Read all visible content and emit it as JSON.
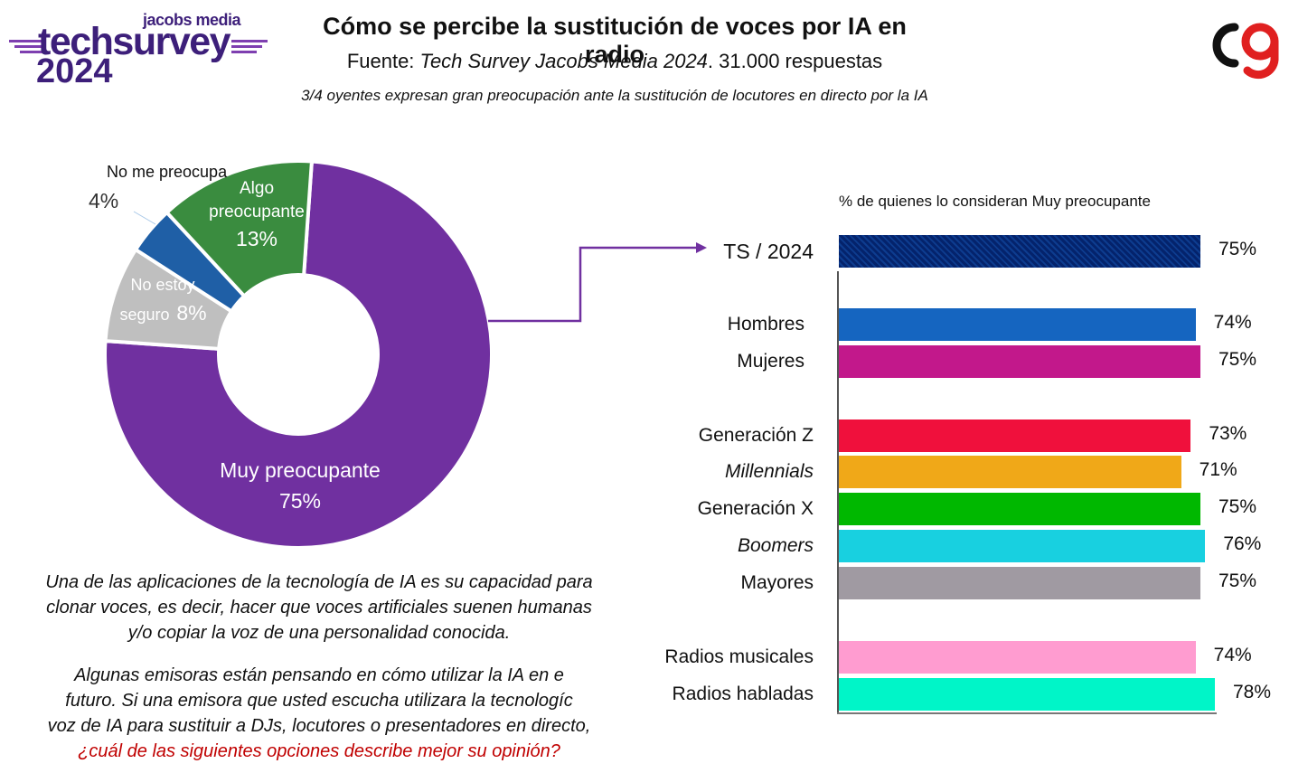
{
  "logo": {
    "top_text": "jacobs media",
    "main_text": "techsurvey",
    "year": "2024"
  },
  "title": "Cómo se percibe la sustitución de voces por IA en radio",
  "source": {
    "prefix": "Fuente: ",
    "italic": "Tech Survey Jacobs Media 2024",
    "suffix": ". 31.000 respuestas"
  },
  "subtitle": "3/4 oyentes expresan gran preocupación ante la sustitución de locutores en directo por la IA",
  "colors": {
    "muy_preocupante": "#7030a0",
    "algo_preocupante": "#3a8c3f",
    "no_me_preocupa": "#1f5fa6",
    "no_estoy_seguro": "#bfbfbf",
    "connector": "#7030a0",
    "logo_purple": "#3d1f7a",
    "corner_red": "#e02020"
  },
  "bars_title": "% de quienes lo consideran Muy preocupante",
  "texts": {
    "question_line1": "Una de las aplicaciones de la tecnología de IA es su capacidad para",
    "question_line2": "clonar voces, es decir, hacer que voces artificiales suenen humanas",
    "question_line3": "y/o copiar la voz de una personalidad conocida.",
    "question2_line1": "Algunas emisoras están pensando en cómo utilizar la IA en e",
    "question2_line2": "futuro. Si una emisora que usted escucha utilizara la tecnologíc",
    "question2_line3": "voz de IA para sustituir a DJs, locutores o presentadores en directo,",
    "question2_red": "¿cuál de las siguientes opciones describe mejor su opinión?"
  },
  "chart_data": [
    {
      "type": "pie",
      "variant": "donut",
      "slices": [
        {
          "label": "Muy preocupante",
          "value": 75,
          "display": "75%",
          "color": "#7030a0"
        },
        {
          "label": "No estoy seguro",
          "value": 8,
          "display": "8%",
          "color": "#bfbfbf"
        },
        {
          "label": "No me preocupa",
          "value": 4,
          "display": "4%",
          "color": "#1f5fa6"
        },
        {
          "label": "Algo preocupante",
          "value": 13,
          "display": "13%",
          "color": "#3a8c3f"
        }
      ]
    },
    {
      "type": "bar",
      "orientation": "horizontal",
      "title": "% de quienes lo consideran Muy preocupante",
      "xlim": [
        0,
        78
      ],
      "categories": [
        "TS / 2024",
        "Hombres",
        "Mujeres",
        "Generación Z",
        "Millennials",
        "Generación X",
        "Boomers",
        "Mayores",
        "Radios musicales",
        "Radios habladas"
      ],
      "values": [
        75,
        74,
        75,
        73,
        71,
        75,
        76,
        75,
        74,
        78
      ],
      "value_labels": [
        "75%",
        "74%",
        "75%",
        "73%",
        "71%",
        "75%",
        "76%",
        "75%",
        "74%",
        "78%"
      ],
      "italic_categories": [
        "Millennials",
        "Boomers"
      ],
      "colors": [
        "#1f5fa6",
        "#1565c0",
        "#c2188b",
        "#f0103c",
        "#f0a818",
        "#00b800",
        "#18d0e0",
        "#a09aa2",
        "#ff9cd0",
        "#00f5c8"
      ],
      "patterned": [
        "TS / 2024"
      ]
    }
  ]
}
